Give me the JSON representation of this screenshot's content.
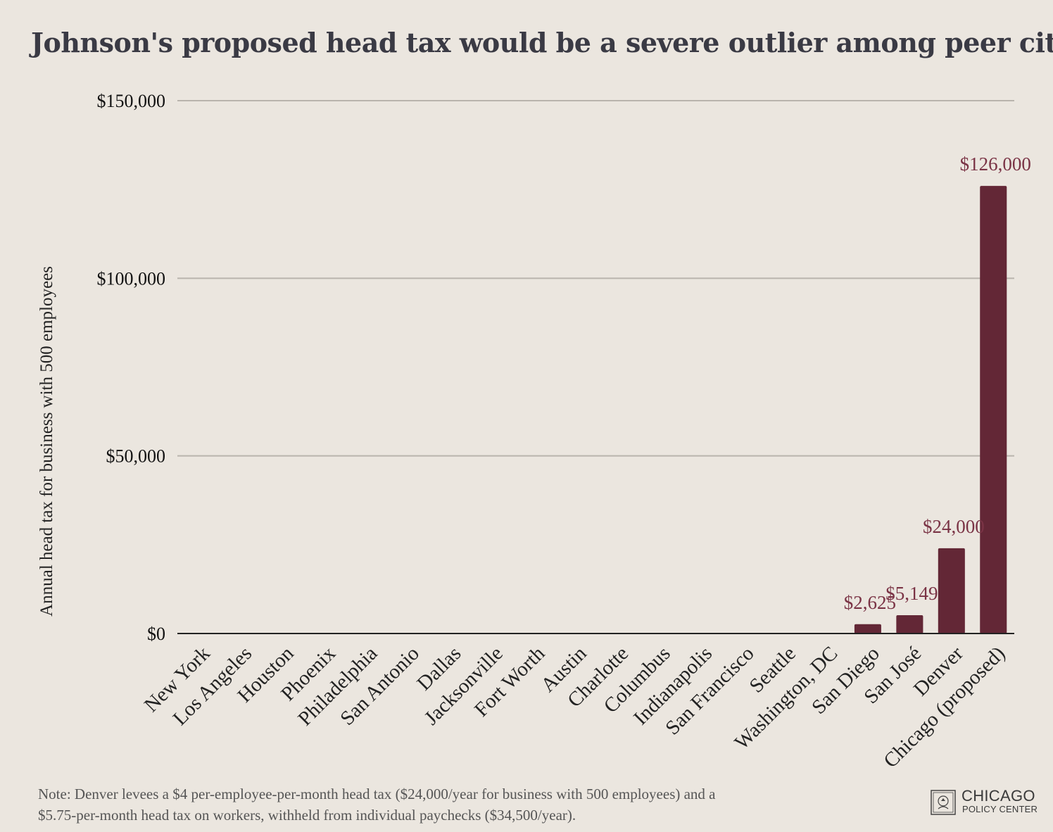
{
  "chart_data": {
    "type": "bar",
    "title": "Johnson's proposed head tax would be a severe outlier among peer cities",
    "xlabel": "",
    "ylabel": "Annual head tax for business with 500 employees",
    "ylim": [
      0,
      150000
    ],
    "yticks": [
      0,
      50000,
      100000,
      150000
    ],
    "ytick_labels": [
      "$0",
      "$50,000",
      "$100,000",
      "$150,000"
    ],
    "grid": true,
    "categories": [
      "New York",
      "Los Angeles",
      "Houston",
      "Phoenix",
      "Philadelphia",
      "San Antonio",
      "Dallas",
      "Jacksonville",
      "Fort Worth",
      "Austin",
      "Charlotte",
      "Columbus",
      "Indianapolis",
      "San Francisco",
      "Seattle",
      "Washington, DC",
      "San Diego",
      "San José",
      "Denver",
      "Chicago (proposed)"
    ],
    "values": [
      0,
      0,
      0,
      0,
      0,
      0,
      0,
      0,
      0,
      0,
      0,
      0,
      0,
      0,
      0,
      0,
      2625,
      5149,
      24000,
      126000
    ],
    "data_labels": [
      "",
      "",
      "",
      "",
      "",
      "",
      "",
      "",
      "",
      "",
      "",
      "",
      "",
      "",
      "",
      "",
      "$2,625",
      "$5,149",
      "$24,000",
      "$126,000"
    ],
    "colors": {
      "bar": "#632736",
      "label": "#7a3345",
      "grid": "#b9b4ad",
      "axis": "#222222"
    }
  },
  "footnote": {
    "line1": "Note: Denver levees a $4 per-employee-per-month head tax ($24,000/year for business with 500 employees) and a",
    "line2": "$5.75-per-month head tax on workers, withheld from individual paychecks ($34,500/year)."
  },
  "brand": {
    "line1": "CHICAGO",
    "line2": "POLICY CENTER",
    "icon": "chicago-seal-icon"
  }
}
